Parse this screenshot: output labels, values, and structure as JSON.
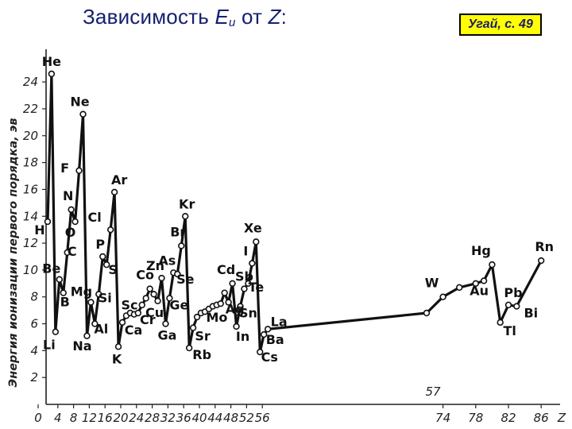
{
  "slide": {
    "title_prefix": "Зависимость ",
    "title_e": "E",
    "title_sub": "и",
    "title_mid": " от ",
    "title_z": "Z",
    "title_suffix": ":",
    "reference": "Угай, с. 49"
  },
  "chart_data": {
    "type": "line",
    "title": "",
    "xlabel": "Z",
    "ylabel": "Энергия ионизации первого порядка, эв",
    "xlim": [
      0,
      90
    ],
    "ylim": [
      0,
      25
    ],
    "x_ticks": [
      "0",
      "4",
      "8",
      "12",
      "16",
      "20",
      "24",
      "28",
      "32",
      "36",
      "40",
      "44",
      "48",
      "52",
      "56",
      "74",
      "78",
      "82",
      "86",
      "Z"
    ],
    "y_ticks": [
      "2",
      "4",
      "6",
      "8",
      "10",
      "12",
      "14",
      "16",
      "18",
      "20",
      "22",
      "24"
    ],
    "axis_break_label": "57",
    "points": [
      {
        "z": 1,
        "e": 13.6,
        "label": "H"
      },
      {
        "z": 2,
        "e": 24.6,
        "label": "He"
      },
      {
        "z": 3,
        "e": 5.4,
        "label": "Li"
      },
      {
        "z": 4,
        "e": 9.3,
        "label": "Be"
      },
      {
        "z": 5,
        "e": 8.3,
        "label": "B"
      },
      {
        "z": 6,
        "e": 11.3,
        "label": "C"
      },
      {
        "z": 7,
        "e": 14.5,
        "label": "N"
      },
      {
        "z": 8,
        "e": 13.6,
        "label": "O"
      },
      {
        "z": 9,
        "e": 17.4,
        "label": "F"
      },
      {
        "z": 10,
        "e": 21.6,
        "label": "Ne"
      },
      {
        "z": 11,
        "e": 5.1,
        "label": "Na"
      },
      {
        "z": 12,
        "e": 7.6,
        "label": "Mg"
      },
      {
        "z": 13,
        "e": 6.0,
        "label": "Al"
      },
      {
        "z": 14,
        "e": 8.2,
        "label": "Si"
      },
      {
        "z": 15,
        "e": 11.0,
        "label": "P"
      },
      {
        "z": 16,
        "e": 10.4,
        "label": "S"
      },
      {
        "z": 17,
        "e": 13.0,
        "label": "Cl"
      },
      {
        "z": 18,
        "e": 15.8,
        "label": "Ar"
      },
      {
        "z": 19,
        "e": 4.3,
        "label": "K"
      },
      {
        "z": 20,
        "e": 6.1,
        "label": "Ca"
      },
      {
        "z": 21,
        "e": 6.6,
        "label": "Sc"
      },
      {
        "z": 22,
        "e": 6.8,
        "label": ""
      },
      {
        "z": 23,
        "e": 6.7,
        "label": ""
      },
      {
        "z": 24,
        "e": 6.8,
        "label": "Cr"
      },
      {
        "z": 25,
        "e": 7.4,
        "label": ""
      },
      {
        "z": 26,
        "e": 7.9,
        "label": ""
      },
      {
        "z": 27,
        "e": 8.6,
        "label": "Co"
      },
      {
        "z": 28,
        "e": 8.2,
        "label": ""
      },
      {
        "z": 29,
        "e": 7.7,
        "label": "Cu"
      },
      {
        "z": 30,
        "e": 9.4,
        "label": "Zn"
      },
      {
        "z": 31,
        "e": 6.0,
        "label": "Ga"
      },
      {
        "z": 32,
        "e": 7.9,
        "label": "Ge"
      },
      {
        "z": 33,
        "e": 9.8,
        "label": "As"
      },
      {
        "z": 34,
        "e": 9.7,
        "label": "Se"
      },
      {
        "z": 35,
        "e": 11.8,
        "label": "Br"
      },
      {
        "z": 36,
        "e": 14.0,
        "label": "Kr"
      },
      {
        "z": 37,
        "e": 4.2,
        "label": "Rb"
      },
      {
        "z": 38,
        "e": 5.7,
        "label": "Sr"
      },
      {
        "z": 39,
        "e": 6.5,
        "label": ""
      },
      {
        "z": 40,
        "e": 6.8,
        "label": ""
      },
      {
        "z": 41,
        "e": 6.9,
        "label": ""
      },
      {
        "z": 42,
        "e": 7.1,
        "label": "Mo"
      },
      {
        "z": 43,
        "e": 7.3,
        "label": ""
      },
      {
        "z": 44,
        "e": 7.4,
        "label": ""
      },
      {
        "z": 45,
        "e": 7.5,
        "label": ""
      },
      {
        "z": 46,
        "e": 8.3,
        "label": ""
      },
      {
        "z": 47,
        "e": 7.6,
        "label": "Ag"
      },
      {
        "z": 48,
        "e": 9.0,
        "label": "Cd"
      },
      {
        "z": 49,
        "e": 5.8,
        "label": "In"
      },
      {
        "z": 50,
        "e": 7.3,
        "label": "Sn"
      },
      {
        "z": 51,
        "e": 8.6,
        "label": "Sb"
      },
      {
        "z": 52,
        "e": 9.0,
        "label": "Te"
      },
      {
        "z": 53,
        "e": 10.5,
        "label": "I"
      },
      {
        "z": 54,
        "e": 12.1,
        "label": "Xe"
      },
      {
        "z": 55,
        "e": 3.9,
        "label": "Cs"
      },
      {
        "z": 56,
        "e": 5.2,
        "label": "Ba"
      },
      {
        "z": 57,
        "e": 5.6,
        "label": "La"
      },
      {
        "z": 72,
        "e": 6.8,
        "label": ""
      },
      {
        "z": 74,
        "e": 8.0,
        "label": "W"
      },
      {
        "z": 76,
        "e": 8.7,
        "label": ""
      },
      {
        "z": 78,
        "e": 9.0,
        "label": ""
      },
      {
        "z": 79,
        "e": 9.2,
        "label": "Au"
      },
      {
        "z": 80,
        "e": 10.4,
        "label": "Hg"
      },
      {
        "z": 81,
        "e": 6.1,
        "label": "Tl"
      },
      {
        "z": 82,
        "e": 7.4,
        "label": "Pb"
      },
      {
        "z": 83,
        "e": 7.3,
        "label": "Bi"
      },
      {
        "z": 86,
        "e": 10.7,
        "label": "Rn"
      }
    ]
  }
}
